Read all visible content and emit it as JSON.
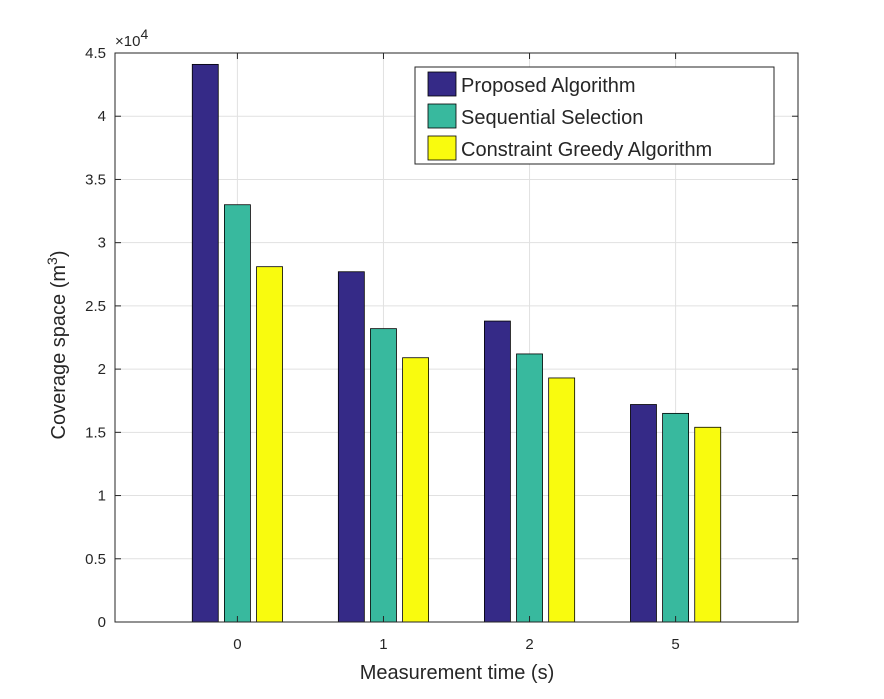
{
  "chart_data": {
    "type": "bar",
    "categories": [
      "0",
      "1",
      "2",
      "5"
    ],
    "series": [
      {
        "name": "Proposed Algorithm",
        "color": "#352a87",
        "values": [
          44100,
          27700,
          23800,
          17200
        ]
      },
      {
        "name": "Sequential Selection",
        "color": "#38b99e",
        "values": [
          33000,
          23200,
          21200,
          16500
        ]
      },
      {
        "name": "Constraint Greedy Algorithm",
        "color": "#f9fb0e",
        "values": [
          28100,
          20900,
          19300,
          15400
        ]
      }
    ],
    "xlabel": "Measurement time (s)",
    "ylabel_main": "Coverage space (m",
    "ylabel_sup": "3",
    "ylabel_close": ")",
    "ylim": [
      0,
      45000
    ],
    "yticks": [
      0,
      5000,
      10000,
      15000,
      20000,
      25000,
      30000,
      35000,
      40000,
      45000
    ],
    "ytick_labels": [
      "0",
      "0.5",
      "1",
      "1.5",
      "2",
      "2.5",
      "3",
      "3.5",
      "4",
      "4.5"
    ],
    "exponent_base": "×10",
    "exponent_power": "4",
    "grid": true,
    "legend_position": "top-right"
  }
}
